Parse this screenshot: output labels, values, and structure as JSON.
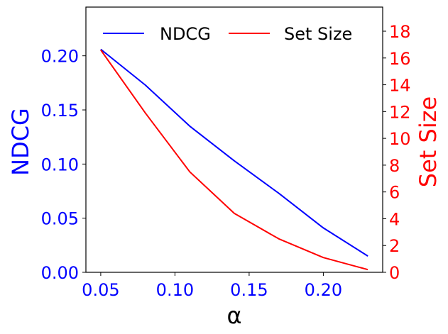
{
  "chart_data": {
    "type": "line",
    "xlabel": "α",
    "x": [
      0.05,
      0.08,
      0.11,
      0.14,
      0.17,
      0.2,
      0.23
    ],
    "xlim": [
      0.04,
      0.24
    ],
    "xticks": [
      "0.05",
      "0.10",
      "0.15",
      "0.20"
    ],
    "xtick_values": [
      0.05,
      0.1,
      0.15,
      0.2
    ],
    "grid": false,
    "legend_position": "top",
    "series": [
      {
        "name": "NDCG",
        "axis": "left",
        "color": "#0000ff",
        "values": [
          0.206,
          0.173,
          0.135,
          0.103,
          0.073,
          0.041,
          0.015
        ]
      },
      {
        "name": "Set Size",
        "axis": "right",
        "color": "#ff0000",
        "values": [
          16.6,
          11.9,
          7.5,
          4.4,
          2.5,
          1.1,
          0.2
        ]
      }
    ],
    "y_left": {
      "label": "NDCG",
      "color": "#0000ff",
      "ylim": [
        0,
        0.245
      ],
      "ticks": [
        "0.00",
        "0.05",
        "0.10",
        "0.15",
        "0.20"
      ],
      "tick_values": [
        0,
        0.05,
        0.1,
        0.15,
        0.2
      ]
    },
    "y_right": {
      "label": "Set Size",
      "color": "#ff0000",
      "ylim": [
        0,
        19.8
      ],
      "ticks": [
        "0",
        "2",
        "4",
        "6",
        "8",
        "10",
        "12",
        "14",
        "16",
        "18"
      ],
      "tick_values": [
        0,
        2,
        4,
        6,
        8,
        10,
        12,
        14,
        16,
        18
      ]
    }
  }
}
